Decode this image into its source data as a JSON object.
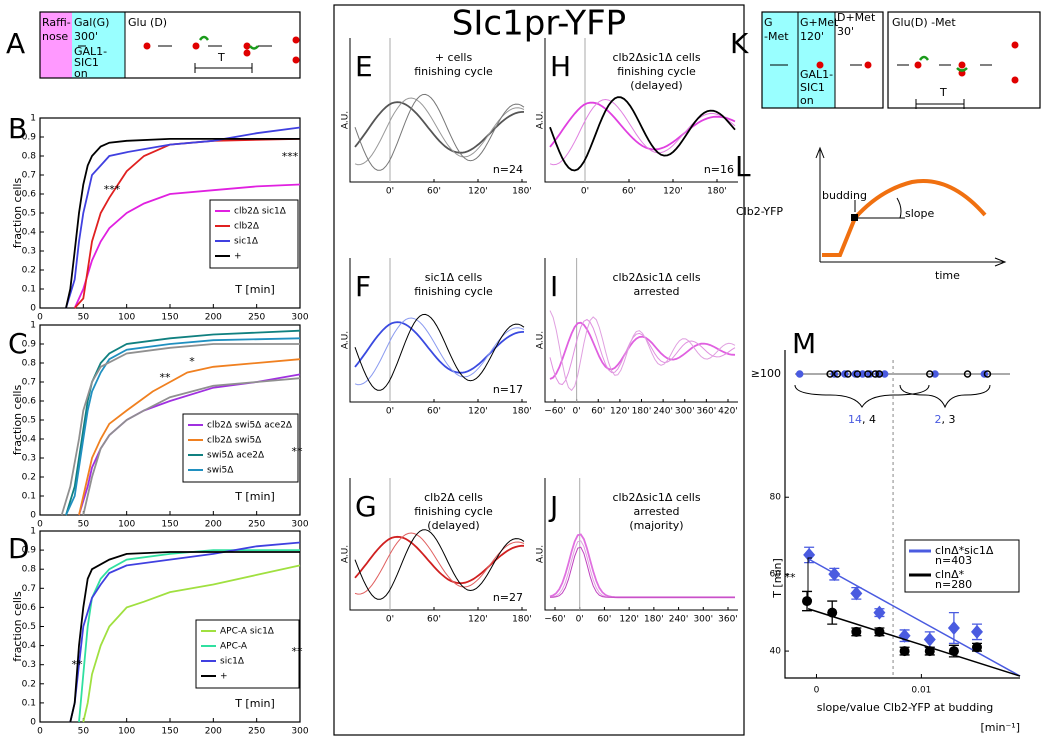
{
  "figure_title": "SIc1pr-YFP",
  "panels": {
    "A": {
      "letter": "A",
      "raff": [
        "Raffi-",
        "nose"
      ],
      "gal": [
        "Gal(G)",
        "300'"
      ],
      "gal1": [
        "GAL1-",
        "SIC1",
        "on"
      ],
      "glu": "Glu (D)",
      "t": "T"
    },
    "K": {
      "letter": "K",
      "g": [
        "G",
        "-Met"
      ],
      "gmet": [
        "G+Met",
        "120'"
      ],
      "dmet": [
        "D+Met",
        "30'"
      ],
      "glu": "Glu(D) -Met",
      "gal1": [
        "GAL1-",
        "SIC1",
        "on"
      ],
      "t": "T"
    },
    "L": {
      "letter": "L",
      "ylabel": "Clb2-YFP",
      "budding": "budding",
      "slope": "slope",
      "xlabel": "time"
    },
    "B": {
      "letter": "B"
    },
    "C": {
      "letter": "C"
    },
    "D": {
      "letter": "D"
    },
    "M": {
      "letter": "M"
    },
    "traces_ylabel": "A.U.",
    "traces": [
      {
        "letter": "E",
        "title": [
          "+ cells",
          "finishing cycle"
        ],
        "n": "n=24",
        "ticks": [
          "0'",
          "60'",
          "120'",
          "180'"
        ]
      },
      {
        "letter": "H",
        "title": [
          "clb2Δsic1Δ cells",
          "finishing cycle",
          "(delayed)"
        ],
        "n": "n=16",
        "ticks": [
          "0'",
          "60'",
          "120'",
          "180'"
        ]
      },
      {
        "letter": "F",
        "title": [
          "sic1Δ cells",
          "finishing cycle"
        ],
        "n": "n=17",
        "ticks": [
          "0'",
          "60'",
          "120'",
          "180'"
        ]
      },
      {
        "letter": "I",
        "title": [
          "clb2Δsic1Δ cells",
          "arrested"
        ],
        "ticks": [
          "−60'",
          "0'",
          "60'",
          "120'",
          "180'",
          "240'",
          "300'",
          "360'",
          "420'"
        ]
      },
      {
        "letter": "G",
        "title": [
          "clb2Δ cells",
          "finishing cycle",
          "(delayed)"
        ],
        "n": "n=27",
        "ticks": [
          "0'",
          "60'",
          "120'",
          "180'"
        ]
      },
      {
        "letter": "J",
        "title": [
          "clb2Δsic1Δ cells",
          "arrested",
          "(majority)"
        ],
        "ticks": [
          "−60'",
          "0'",
          "60'",
          "120'",
          "180'",
          "240'",
          "300'",
          "360'"
        ]
      }
    ]
  },
  "chart_data": [
    {
      "type": "line",
      "ylabel": "fraction cells",
      "xlabel": "T [min]",
      "xlim": [
        0,
        300
      ],
      "ylim": [
        0,
        1
      ],
      "xticks": [
        0,
        50,
        100,
        150,
        200,
        250,
        300
      ],
      "yticks": [
        0,
        0.1,
        0.2,
        0.3,
        0.4,
        0.5,
        0.6,
        0.7,
        0.8,
        0.9,
        1
      ],
      "annotations": [
        "***",
        "***"
      ],
      "series": [
        {
          "name": "clb2Δ  sic1Δ",
          "color": "#e020e0",
          "x": [
            40,
            50,
            60,
            70,
            80,
            100,
            120,
            150,
            200,
            250,
            300
          ],
          "values": [
            0,
            0.1,
            0.25,
            0.35,
            0.42,
            0.5,
            0.55,
            0.6,
            0.62,
            0.64,
            0.65
          ]
        },
        {
          "name": "clb2Δ",
          "color": "#e02020",
          "x": [
            40,
            50,
            55,
            60,
            70,
            80,
            90,
            100,
            120,
            150,
            200,
            300
          ],
          "values": [
            0,
            0.05,
            0.2,
            0.35,
            0.5,
            0.58,
            0.65,
            0.72,
            0.8,
            0.86,
            0.88,
            0.89
          ]
        },
        {
          "name": "sic1Δ",
          "color": "#4040e0",
          "x": [
            30,
            40,
            45,
            50,
            55,
            60,
            70,
            80,
            100,
            150,
            200,
            250,
            300
          ],
          "values": [
            0,
            0.15,
            0.35,
            0.5,
            0.6,
            0.7,
            0.75,
            0.8,
            0.82,
            0.86,
            0.88,
            0.92,
            0.95
          ]
        },
        {
          "name": "+",
          "color": "#000000",
          "x": [
            30,
            35,
            40,
            45,
            50,
            55,
            60,
            70,
            80,
            100,
            150,
            200,
            300
          ],
          "values": [
            0,
            0.1,
            0.3,
            0.5,
            0.65,
            0.75,
            0.8,
            0.85,
            0.87,
            0.88,
            0.89,
            0.89,
            0.89
          ]
        }
      ]
    },
    {
      "type": "line",
      "ylabel": "fraction cells",
      "xlabel": "T [min]",
      "xlim": [
        0,
        300
      ],
      "ylim": [
        0,
        1
      ],
      "xticks": [
        0,
        50,
        100,
        150,
        200,
        250,
        300
      ],
      "yticks": [
        0,
        0.1,
        0.2,
        0.3,
        0.4,
        0.5,
        0.6,
        0.7,
        0.8,
        0.9,
        1
      ],
      "annotations": [
        "**",
        "*",
        "**"
      ],
      "series": [
        {
          "name": "clb2Δ  swi5Δ  ace2Δ",
          "color": "#a030e0",
          "x": [
            45,
            55,
            60,
            70,
            80,
            100,
            120,
            150,
            200,
            250,
            300
          ],
          "values": [
            0,
            0.15,
            0.25,
            0.35,
            0.42,
            0.5,
            0.55,
            0.6,
            0.67,
            0.7,
            0.74
          ]
        },
        {
          "name": "clb2Δ  swi5Δ",
          "color": "#f08020",
          "x": [
            45,
            55,
            60,
            70,
            80,
            100,
            130,
            150,
            170,
            200,
            300
          ],
          "values": [
            0,
            0.2,
            0.3,
            0.4,
            0.48,
            0.55,
            0.65,
            0.7,
            0.75,
            0.78,
            0.82
          ]
        },
        {
          "name": "swi5Δ  ace2Δ",
          "color": "#108080",
          "x": [
            30,
            40,
            50,
            55,
            60,
            70,
            80,
            100,
            150,
            200,
            300
          ],
          "values": [
            0,
            0.15,
            0.45,
            0.6,
            0.7,
            0.8,
            0.85,
            0.9,
            0.93,
            0.95,
            0.97
          ]
        },
        {
          "name": "swi5Δ",
          "color": "#2090c0",
          "x": [
            30,
            40,
            50,
            55,
            60,
            70,
            80,
            100,
            150,
            200,
            300
          ],
          "values": [
            0,
            0.1,
            0.4,
            0.55,
            0.65,
            0.75,
            0.82,
            0.87,
            0.9,
            0.92,
            0.93
          ]
        },
        {
          "color": "#909090",
          "x": [
            25,
            35,
            45,
            50,
            60,
            70,
            100,
            150,
            200,
            300
          ],
          "values": [
            0,
            0.15,
            0.4,
            0.55,
            0.7,
            0.78,
            0.85,
            0.88,
            0.9,
            0.9
          ]
        },
        {
          "color": "#909090",
          "x": [
            50,
            60,
            70,
            80,
            100,
            120,
            150,
            200,
            300
          ],
          "values": [
            0,
            0.2,
            0.35,
            0.42,
            0.5,
            0.55,
            0.62,
            0.68,
            0.72
          ]
        }
      ]
    },
    {
      "type": "line",
      "ylabel": "fraction cells",
      "xlabel": "T [min]",
      "xlim": [
        0,
        300
      ],
      "ylim": [
        0,
        1
      ],
      "xticks": [
        0,
        50,
        100,
        150,
        200,
        250,
        300
      ],
      "yticks": [
        0,
        0.1,
        0.2,
        0.3,
        0.4,
        0.5,
        0.6,
        0.7,
        0.8,
        0.9,
        1
      ],
      "annotations": [
        "**",
        "**"
      ],
      "series": [
        {
          "name": "APC-A  sic1Δ",
          "color": "#a0e040",
          "x": [
            50,
            55,
            60,
            70,
            80,
            90,
            100,
            120,
            150,
            200,
            250,
            300
          ],
          "values": [
            0,
            0.1,
            0.25,
            0.4,
            0.5,
            0.55,
            0.6,
            0.63,
            0.68,
            0.72,
            0.77,
            0.82
          ]
        },
        {
          "name": "APC-A",
          "color": "#30e0a0",
          "x": [
            45,
            50,
            55,
            60,
            70,
            80,
            100,
            150,
            200,
            300
          ],
          "values": [
            0,
            0.25,
            0.5,
            0.65,
            0.75,
            0.8,
            0.85,
            0.88,
            0.9,
            0.9
          ]
        },
        {
          "name": "sic1Δ",
          "color": "#4040e0",
          "x": [
            35,
            40,
            45,
            50,
            60,
            70,
            80,
            100,
            150,
            200,
            250,
            300
          ],
          "values": [
            0,
            0.1,
            0.3,
            0.5,
            0.65,
            0.72,
            0.78,
            0.82,
            0.85,
            0.88,
            0.92,
            0.94
          ]
        },
        {
          "name": "+",
          "color": "#000000",
          "x": [
            35,
            40,
            45,
            50,
            55,
            60,
            80,
            100,
            150,
            300
          ],
          "values": [
            0,
            0.1,
            0.4,
            0.6,
            0.75,
            0.8,
            0.85,
            0.88,
            0.89,
            0.89
          ]
        }
      ]
    },
    {
      "type": "scatter",
      "ylabel": "T [min]",
      "xlabel": [
        "slope/value Clb2-YFP at budding",
        "[min⁻¹]"
      ],
      "xlim": [
        -0.003,
        0.0194
      ],
      "ylim": [
        33,
        85
      ],
      "xticks": [
        0,
        0.01
      ],
      "yticks": [
        40,
        60,
        80
      ],
      "annotations": [
        "**"
      ],
      "vline": 0.0073,
      "strip": {
        "label": "≥100",
        "counts": [
          {
            "blue": "14",
            "black": ", 4"
          },
          {
            "blue": "2",
            "black": ", 3"
          }
        ],
        "series": [
          {
            "color": "#4a5be0",
            "x": [
              -0.0016,
              0.0017,
              0.0027,
              0.0037,
              0.0044,
              0.0051,
              0.0059,
              0.0065,
              0.0113,
              0.016
            ]
          },
          {
            "color": "#000000",
            "x": [
              0.0013,
              0.002,
              0.003,
              0.0039,
              0.0049,
              0.0056,
              0.006,
              0.0108,
              0.0144,
              0.0163
            ]
          }
        ]
      },
      "series": [
        {
          "name": "clnΔ*sic1Δ",
          "n": "n=403",
          "color": "#4a5be0",
          "marker": "diamond",
          "x": [
            -0.0007,
            0.0017,
            0.0038,
            0.006,
            0.0084,
            0.0108,
            0.0131,
            0.0153
          ],
          "values": [
            65,
            60,
            55,
            50,
            44,
            43,
            46,
            45
          ],
          "errors": [
            2,
            1.5,
            1.5,
            1,
            1.5,
            2,
            4,
            2
          ],
          "fit": {
            "x": [
              -0.0008,
              0.0194
            ],
            "values": [
              64,
              33.5
            ]
          }
        },
        {
          "name": "clnΔ*",
          "n": "n=280",
          "color": "#000000",
          "marker": "circle",
          "x": [
            -0.0009,
            0.0015,
            0.0038,
            0.006,
            0.0084,
            0.0108,
            0.0131,
            0.0153
          ],
          "values": [
            53,
            50,
            45,
            45,
            40,
            40,
            40,
            41
          ],
          "errors": [
            2.5,
            3,
            1,
            1,
            1,
            1,
            1.5,
            1
          ],
          "fit": {
            "x": [
              -0.0008,
              0.0194
            ],
            "values": [
              51,
              33.5
            ]
          }
        }
      ]
    }
  ]
}
